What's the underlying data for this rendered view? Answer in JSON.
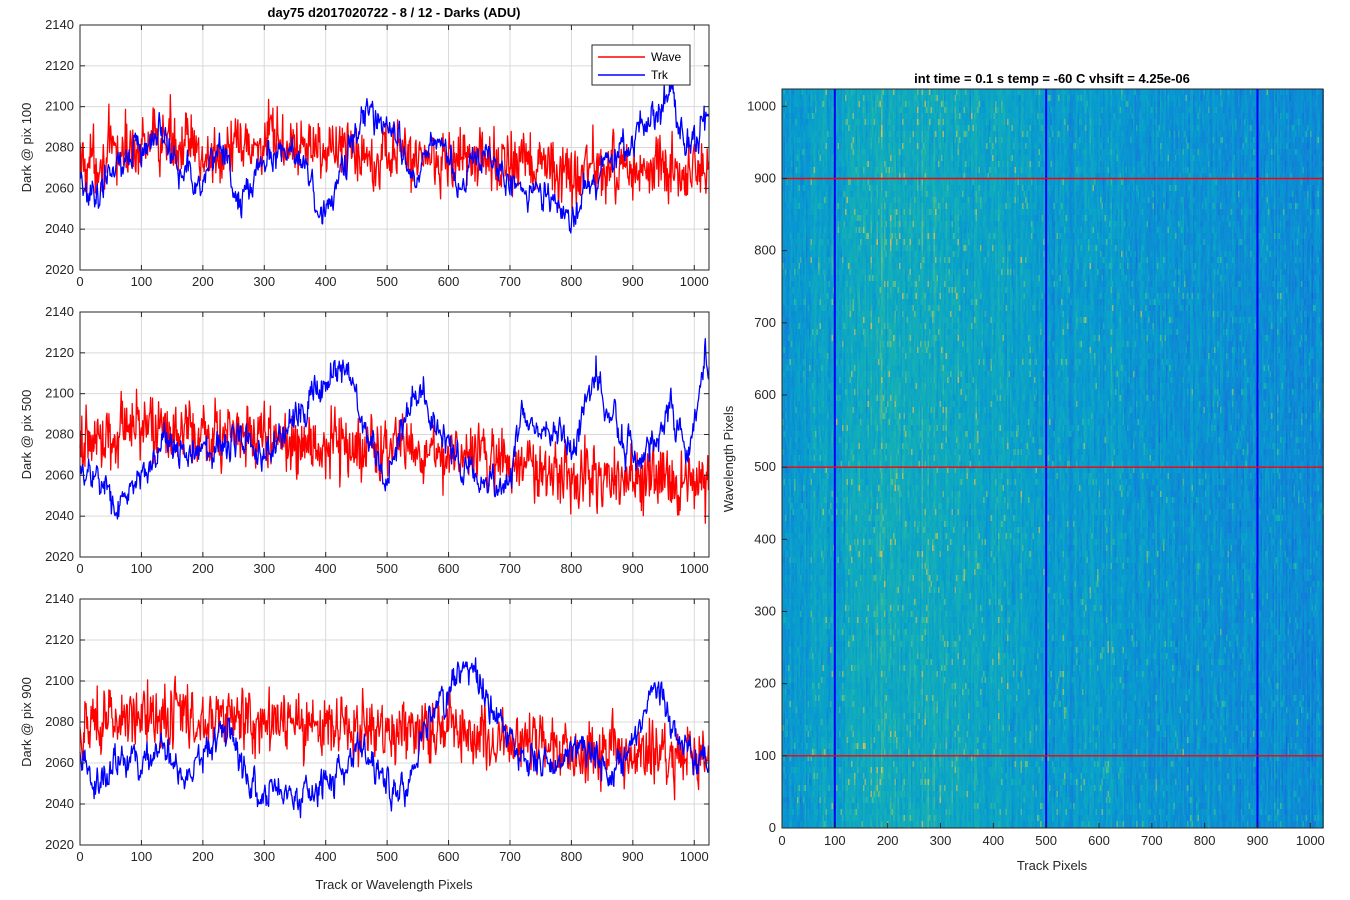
{
  "figure": {
    "title": "day75 d2017020722 - 8 / 12 - Darks (ADU)",
    "shared_xlabel": "Track or Wavelength Pixels"
  },
  "colors": {
    "wave": "#ff0000",
    "trk": "#0000ff",
    "grid": "#d9d9d9",
    "axis": "#262626"
  },
  "chart_data": [
    {
      "type": "line",
      "ylabel": "Dark @ pix 100",
      "xlim": [
        0,
        1024
      ],
      "ylim": [
        2020,
        2140
      ],
      "xticks": [
        0,
        100,
        200,
        300,
        400,
        500,
        600,
        700,
        800,
        900,
        1000
      ],
      "yticks": [
        2020,
        2040,
        2060,
        2080,
        2100,
        2120,
        2140
      ],
      "grid": true,
      "legend": {
        "placement": "top-right",
        "entries": [
          "Wave",
          "Trk"
        ]
      },
      "series": [
        {
          "name": "Wave",
          "x_range": [
            0,
            1024
          ],
          "mean": 2078,
          "noise": 12,
          "anchors": [
            [
              0,
              2072
            ],
            [
              100,
              2080
            ],
            [
              150,
              2085
            ],
            [
              200,
              2075
            ],
            [
              300,
              2082
            ],
            [
              400,
              2080
            ],
            [
              500,
              2077
            ],
            [
              600,
              2075
            ],
            [
              700,
              2072
            ],
            [
              800,
              2068
            ],
            [
              900,
              2070
            ],
            [
              1024,
              2065
            ]
          ]
        },
        {
          "name": "Trk",
          "x_range": [
            0,
            1024
          ],
          "mean": 2075,
          "noise": 5,
          "anchors": [
            [
              0,
              2065
            ],
            [
              20,
              2055
            ],
            [
              50,
              2068
            ],
            [
              80,
              2075
            ],
            [
              130,
              2088
            ],
            [
              170,
              2070
            ],
            [
              200,
              2060
            ],
            [
              230,
              2085
            ],
            [
              260,
              2050
            ],
            [
              300,
              2075
            ],
            [
              350,
              2080
            ],
            [
              400,
              2045
            ],
            [
              420,
              2062
            ],
            [
              460,
              2095
            ],
            [
              500,
              2093
            ],
            [
              550,
              2060
            ],
            [
              570,
              2085
            ],
            [
              600,
              2075
            ],
            [
              620,
              2060
            ],
            [
              660,
              2080
            ],
            [
              700,
              2062
            ],
            [
              760,
              2058
            ],
            [
              800,
              2045
            ],
            [
              840,
              2065
            ],
            [
              880,
              2080
            ],
            [
              920,
              2090
            ],
            [
              960,
              2105
            ],
            [
              990,
              2078
            ],
            [
              1024,
              2102
            ]
          ]
        }
      ]
    },
    {
      "type": "line",
      "ylabel": "Dark @ pix 500",
      "xlim": [
        0,
        1024
      ],
      "ylim": [
        2020,
        2140
      ],
      "xticks": [
        0,
        100,
        200,
        300,
        400,
        500,
        600,
        700,
        800,
        900,
        1000
      ],
      "yticks": [
        2020,
        2040,
        2060,
        2080,
        2100,
        2120,
        2140
      ],
      "grid": true,
      "series": [
        {
          "name": "Wave",
          "x_range": [
            0,
            1024
          ],
          "mean": 2075,
          "noise": 12,
          "anchors": [
            [
              0,
              2075
            ],
            [
              100,
              2085
            ],
            [
              200,
              2080
            ],
            [
              300,
              2078
            ],
            [
              400,
              2075
            ],
            [
              500,
              2072
            ],
            [
              600,
              2070
            ],
            [
              700,
              2068
            ],
            [
              800,
              2062
            ],
            [
              900,
              2060
            ],
            [
              1024,
              2055
            ]
          ]
        },
        {
          "name": "Trk",
          "x_range": [
            0,
            1024
          ],
          "mean": 2075,
          "noise": 5,
          "anchors": [
            [
              0,
              2062
            ],
            [
              30,
              2060
            ],
            [
              60,
              2045
            ],
            [
              100,
              2060
            ],
            [
              140,
              2075
            ],
            [
              180,
              2070
            ],
            [
              230,
              2075
            ],
            [
              270,
              2080
            ],
            [
              300,
              2065
            ],
            [
              330,
              2080
            ],
            [
              380,
              2100
            ],
            [
              430,
              2118
            ],
            [
              460,
              2082
            ],
            [
              500,
              2058
            ],
            [
              530,
              2090
            ],
            [
              560,
              2100
            ],
            [
              600,
              2072
            ],
            [
              640,
              2060
            ],
            [
              700,
              2058
            ],
            [
              720,
              2090
            ],
            [
              760,
              2085
            ],
            [
              800,
              2075
            ],
            [
              840,
              2110
            ],
            [
              880,
              2080
            ],
            [
              920,
              2065
            ],
            [
              960,
              2093
            ],
            [
              990,
              2070
            ],
            [
              1020,
              2120
            ],
            [
              1024,
              2110
            ]
          ]
        }
      ]
    },
    {
      "type": "line",
      "ylabel": "Dark @ pix 900",
      "xlabel": "Track or Wavelength Pixels",
      "xlim": [
        0,
        1024
      ],
      "ylim": [
        2020,
        2140
      ],
      "xticks": [
        0,
        100,
        200,
        300,
        400,
        500,
        600,
        700,
        800,
        900,
        1000
      ],
      "yticks": [
        2020,
        2040,
        2060,
        2080,
        2100,
        2120,
        2140
      ],
      "grid": true,
      "series": [
        {
          "name": "Wave",
          "x_range": [
            0,
            1024
          ],
          "mean": 2077,
          "noise": 12,
          "anchors": [
            [
              0,
              2078
            ],
            [
              100,
              2085
            ],
            [
              200,
              2082
            ],
            [
              300,
              2080
            ],
            [
              400,
              2078
            ],
            [
              500,
              2075
            ],
            [
              600,
              2078
            ],
            [
              700,
              2072
            ],
            [
              800,
              2068
            ],
            [
              900,
              2065
            ],
            [
              1024,
              2060
            ]
          ]
        },
        {
          "name": "Trk",
          "x_range": [
            0,
            1024
          ],
          "mean": 2062,
          "noise": 5,
          "anchors": [
            [
              0,
              2065
            ],
            [
              30,
              2050
            ],
            [
              60,
              2060
            ],
            [
              100,
              2058
            ],
            [
              130,
              2072
            ],
            [
              170,
              2050
            ],
            [
              210,
              2065
            ],
            [
              240,
              2078
            ],
            [
              280,
              2050
            ],
            [
              330,
              2045
            ],
            [
              380,
              2048
            ],
            [
              420,
              2052
            ],
            [
              460,
              2068
            ],
            [
              500,
              2050
            ],
            [
              530,
              2045
            ],
            [
              560,
              2075
            ],
            [
              600,
              2095
            ],
            [
              630,
              2112
            ],
            [
              660,
              2090
            ],
            [
              700,
              2070
            ],
            [
              740,
              2062
            ],
            [
              780,
              2060
            ],
            [
              820,
              2070
            ],
            [
              860,
              2055
            ],
            [
              900,
              2070
            ],
            [
              940,
              2098
            ],
            [
              980,
              2070
            ],
            [
              1024,
              2060
            ]
          ]
        }
      ]
    },
    {
      "type": "heatmap",
      "title": "int time = 0.1 s   temp = -60 C   vhsift = 4.25e-06",
      "xlabel": "Track Pixels",
      "ylabel": "Wavelength Pixels",
      "xlim": [
        0,
        1024
      ],
      "ylim": [
        0,
        1024
      ],
      "xticks": [
        0,
        100,
        200,
        300,
        400,
        500,
        600,
        700,
        800,
        900,
        1000
      ],
      "yticks": [
        0,
        100,
        200,
        300,
        400,
        500,
        600,
        700,
        800,
        900,
        1000
      ],
      "colormap": "parula",
      "column_brightness": [
        [
          0,
          0.42
        ],
        [
          100,
          0.5
        ],
        [
          150,
          0.56
        ],
        [
          260,
          0.54
        ],
        [
          360,
          0.52
        ],
        [
          420,
          0.5
        ],
        [
          500,
          0.45
        ],
        [
          600,
          0.44
        ],
        [
          800,
          0.4
        ],
        [
          1024,
          0.36
        ]
      ],
      "vertical_markers": [
        100,
        500,
        900
      ],
      "horizontal_markers": [
        100,
        500,
        900
      ],
      "vertical_marker_color": "#0000ff",
      "horizontal_marker_color": "#ff0000"
    }
  ]
}
